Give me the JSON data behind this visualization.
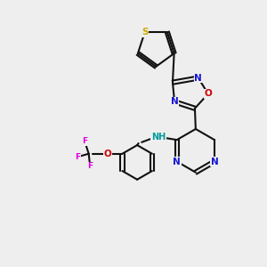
{
  "bg_color": "#eeeeee",
  "bond_color": "#111111",
  "S_color": "#ccaa00",
  "N_color": "#1414d4",
  "O_color": "#cc0000",
  "F_color": "#dd00dd",
  "NH_color": "#009999",
  "figsize": [
    3.0,
    3.0
  ],
  "dpi": 100,
  "lw": 1.5,
  "fs": 7.5,
  "fs_small": 6.5,
  "xlim": [
    0,
    10
  ],
  "ylim": [
    0,
    10
  ]
}
